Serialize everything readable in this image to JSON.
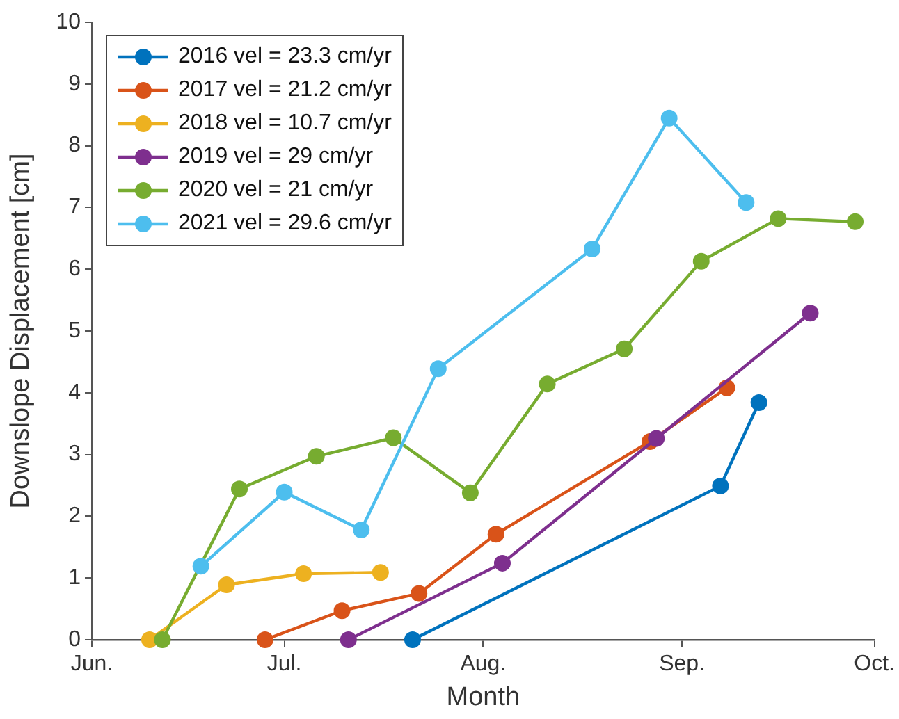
{
  "chart_data": {
    "type": "line",
    "xlabel": "Month",
    "ylabel": "Downslope Displacement [cm]",
    "xlim": [
      "--06-01",
      "--10-01"
    ],
    "xticks": [
      {
        "value": "--06-01",
        "label": "Jun."
      },
      {
        "value": "--07-01",
        "label": "Jul."
      },
      {
        "value": "--08-01",
        "label": "Aug."
      },
      {
        "value": "--09-01",
        "label": "Sep."
      },
      {
        "value": "--10-01",
        "label": "Oct."
      }
    ],
    "ylim": [
      0,
      10
    ],
    "yticks": [
      0,
      1,
      2,
      3,
      4,
      5,
      6,
      7,
      8,
      9,
      10
    ],
    "grid": false,
    "legend": "top left",
    "marker": "circle",
    "line_style": "solid",
    "series": [
      {
        "name": "2016 vel = 23.3 cm/yr",
        "color": "#0072bd",
        "x": [
          "--07-21",
          "--09-07",
          "--09-13"
        ],
        "values": [
          0,
          2.49,
          3.84
        ]
      },
      {
        "name": "2017 vel = 21.2 cm/yr",
        "color": "#d95319",
        "x": [
          "--06-28",
          "--07-10",
          "--07-22",
          "--08-03",
          "--08-27",
          "--09-08"
        ],
        "values": [
          0,
          0.47,
          0.75,
          1.71,
          3.21,
          4.08
        ]
      },
      {
        "name": "2018 vel = 10.7 cm/yr",
        "color": "#edb120",
        "x": [
          "--06-10",
          "--06-22",
          "--07-04",
          "--07-16"
        ],
        "values": [
          0,
          0.89,
          1.07,
          1.09
        ]
      },
      {
        "name": "2019 vel = 29 cm/yr",
        "color": "#7e2f8e",
        "x": [
          "--07-11",
          "--08-04",
          "--08-28",
          "--09-21"
        ],
        "values": [
          0,
          1.24,
          3.26,
          5.29
        ]
      },
      {
        "name": "2020 vel = 21 cm/yr",
        "color": "#77ac30",
        "x": [
          "--06-12",
          "--06-24",
          "--07-06",
          "--07-18",
          "--07-30",
          "--08-11",
          "--08-23",
          "--09-04",
          "--09-16",
          "--09-28"
        ],
        "values": [
          0,
          2.44,
          2.97,
          3.27,
          2.38,
          4.14,
          4.71,
          6.13,
          6.82,
          6.77
        ]
      },
      {
        "name": "2021 vel = 29.6 cm/yr",
        "color": "#4dbeee",
        "x": [
          "--06-18",
          "--07-01",
          "--07-13",
          "--07-25",
          "--08-18",
          "--08-30",
          "--09-11"
        ],
        "values": [
          1.19,
          2.39,
          1.78,
          4.39,
          6.33,
          8.45,
          7.08
        ]
      }
    ]
  }
}
